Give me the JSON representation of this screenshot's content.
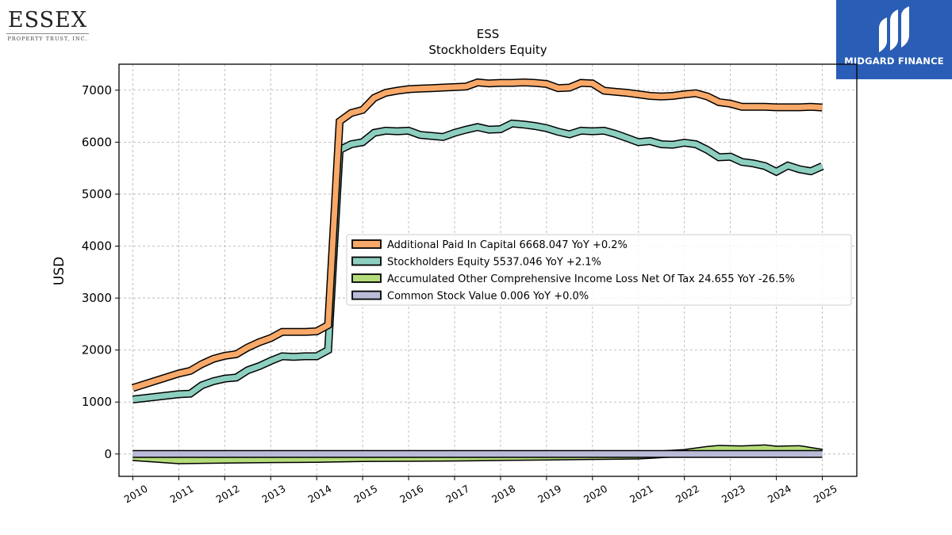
{
  "branding": {
    "left_logo_word": "ESSEX",
    "left_logo_sub": "PROPERTY TRUST, INC.",
    "right_logo_text": "MIDGARD FINANCE",
    "right_logo_bg": "#2a5db5"
  },
  "chart_data": {
    "type": "line",
    "title": "ESS",
    "subtitle": "Stockholders  Equity",
    "xlabel": "",
    "ylabel": "USD",
    "xlim": [
      2009.7,
      2025.75
    ],
    "ylim": [
      -430,
      7500
    ],
    "yticks": [
      0,
      1000,
      2000,
      3000,
      4000,
      5000,
      6000,
      7000
    ],
    "xticks": [
      "2010",
      "2011",
      "2012",
      "2013",
      "2014",
      "2015",
      "2016",
      "2017",
      "2018",
      "2019",
      "2020",
      "2021",
      "2022",
      "2023",
      "2024",
      "2025"
    ],
    "grid": true,
    "legend_position": "center-right",
    "series": [
      {
        "name": "Additional Paid In Capital",
        "legend_label": "Additional Paid In Capital  6668.047 YoY +0.2%",
        "color": "#f8a868",
        "x": [
          2010.0,
          2011.0,
          2011.25,
          2011.5,
          2011.75,
          2012.0,
          2012.25,
          2012.5,
          2012.75,
          2013.0,
          2013.25,
          2013.5,
          2013.75,
          2014.0,
          2014.25,
          2014.5,
          2014.75,
          2015.0,
          2015.25,
          2015.5,
          2015.75,
          2016.0,
          2016.25,
          2016.5,
          2016.75,
          2017.0,
          2017.25,
          2017.5,
          2017.75,
          2018.0,
          2018.25,
          2018.5,
          2018.75,
          2019.0,
          2019.25,
          2019.5,
          2019.75,
          2020.0,
          2020.25,
          2020.5,
          2020.75,
          2021.0,
          2021.25,
          2021.5,
          2021.75,
          2022.0,
          2022.25,
          2022.5,
          2022.75,
          2023.0,
          2023.25,
          2023.5,
          2023.75,
          2024.0,
          2024.25,
          2024.5,
          2024.75,
          2025.0
        ],
        "values": [
          1270,
          1550,
          1600,
          1730,
          1830,
          1890,
          1920,
          2050,
          2150,
          2230,
          2350,
          2350,
          2350,
          2360,
          2480,
          6400,
          6560,
          6620,
          6850,
          6950,
          6990,
          7020,
          7030,
          7040,
          7050,
          7060,
          7070,
          7150,
          7130,
          7140,
          7140,
          7150,
          7140,
          7120,
          7040,
          7050,
          7140,
          7130,
          6990,
          6970,
          6950,
          6920,
          6890,
          6880,
          6890,
          6920,
          6940,
          6880,
          6770,
          6740,
          6680,
          6680,
          6680,
          6670,
          6670,
          6670,
          6680,
          6668
        ]
      },
      {
        "name": "Stockholders Equity",
        "legend_label": "Stockholders Equity  5537.046 YoY +2.1%",
        "color": "#8ccfc0",
        "x": [
          2010.0,
          2011.0,
          2011.25,
          2011.5,
          2011.75,
          2012.0,
          2012.25,
          2012.5,
          2012.75,
          2013.0,
          2013.25,
          2013.5,
          2013.75,
          2014.0,
          2014.25,
          2014.5,
          2014.75,
          2015.0,
          2015.25,
          2015.5,
          2015.75,
          2016.0,
          2016.25,
          2016.5,
          2016.75,
          2017.0,
          2017.25,
          2017.5,
          2017.75,
          2018.0,
          2018.25,
          2018.5,
          2018.75,
          2019.0,
          2019.25,
          2019.5,
          2019.75,
          2020.0,
          2020.25,
          2020.5,
          2020.75,
          2021.0,
          2021.25,
          2021.5,
          2021.75,
          2022.0,
          2022.25,
          2022.5,
          2022.75,
          2023.0,
          2023.25,
          2023.5,
          2023.75,
          2024.0,
          2024.25,
          2024.5,
          2024.75,
          2025.0
        ],
        "values": [
          1050,
          1150,
          1160,
          1320,
          1400,
          1450,
          1470,
          1610,
          1690,
          1790,
          1880,
          1870,
          1880,
          1880,
          2000,
          5850,
          5960,
          6000,
          6180,
          6220,
          6210,
          6220,
          6140,
          6120,
          6100,
          6180,
          6240,
          6290,
          6240,
          6250,
          6360,
          6340,
          6310,
          6270,
          6200,
          6150,
          6220,
          6210,
          6220,
          6160,
          6080,
          6000,
          6020,
          5960,
          5950,
          5990,
          5960,
          5850,
          5710,
          5720,
          5620,
          5590,
          5540,
          5430,
          5550,
          5480,
          5440,
          5537
        ]
      },
      {
        "name": "Accumulated Other Comprehensive Income Loss Net Of Tax",
        "legend_label": "Accumulated Other Comprehensive Income Loss Net Of Tax  24.655 YoY -26.5%",
        "color": "#b5dc7a",
        "x": [
          2010.0,
          2011.0,
          2012.0,
          2013.0,
          2014.0,
          2015.0,
          2016.0,
          2017.0,
          2018.0,
          2019.0,
          2020.0,
          2021.0,
          2022.0,
          2022.5,
          2022.75,
          2023.0,
          2023.25,
          2023.5,
          2023.75,
          2024.0,
          2024.25,
          2024.5,
          2024.75,
          2025.0
        ],
        "values": [
          -60,
          -120,
          -110,
          -100,
          -95,
          -80,
          -75,
          -70,
          -60,
          -50,
          -40,
          -30,
          20,
          80,
          100,
          95,
          90,
          100,
          110,
          85,
          90,
          95,
          60,
          25
        ]
      },
      {
        "name": "Common Stock Value",
        "legend_label": "Common Stock Value  0.006 YoY +0.0%",
        "color": "#babbd8",
        "x": [
          2010.0,
          2025.0
        ],
        "values": [
          0.006,
          0.006
        ]
      }
    ]
  }
}
